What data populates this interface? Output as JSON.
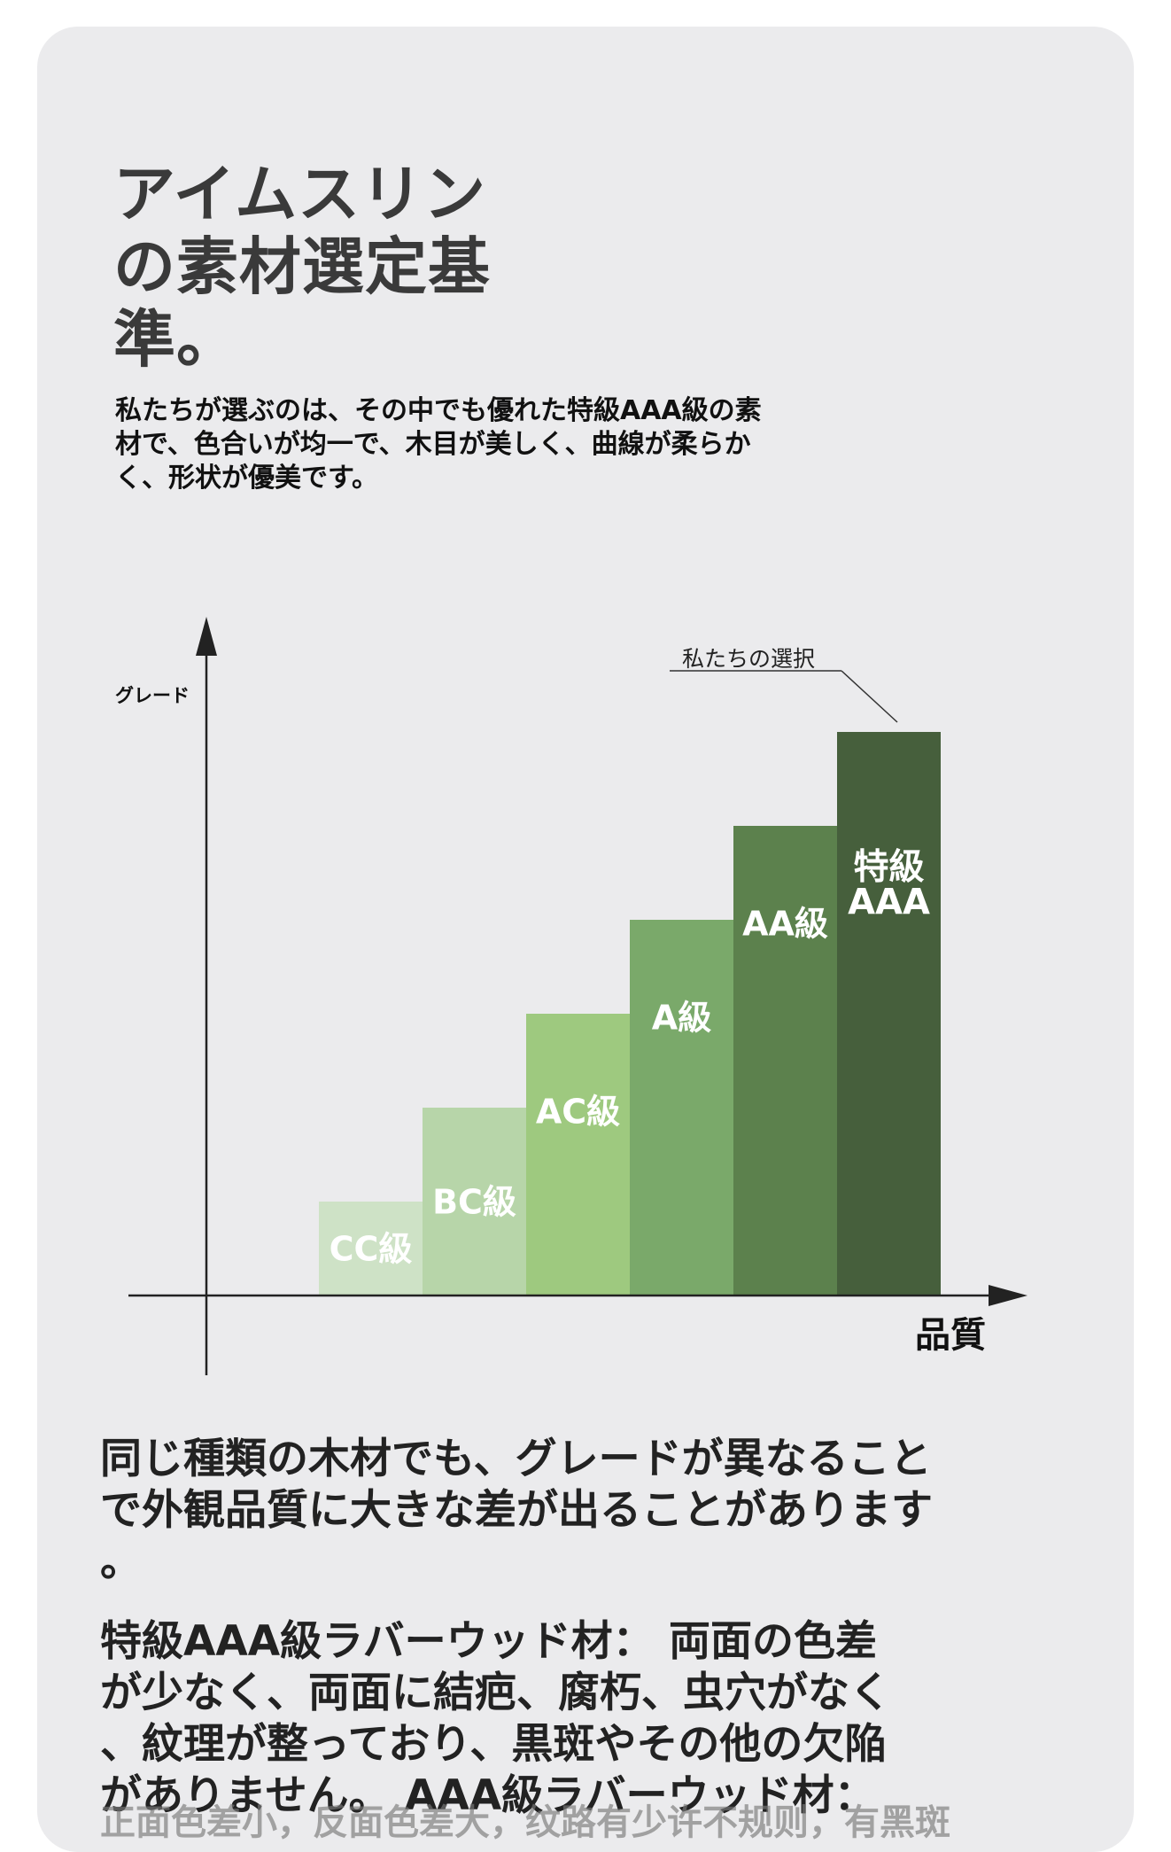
{
  "title_lines": [
    "アイムスリン",
    "の素材選定基",
    "準。"
  ],
  "intro_lines": [
    "私たちが選ぶのは、その中でも優れた特級AAA級の素",
    "材で、色合いが均一で、木目が美しく、曲線が柔らか",
    "く、形状が優美です。"
  ],
  "chart_data": {
    "type": "bar",
    "ylabel": "グレード",
    "xlabel": "品質",
    "annotation": "私たちの選択",
    "annotation_target": "特級AAA",
    "categories": [
      "CC級",
      "BC級",
      "AC級",
      "A級",
      "AA級",
      "特級AAA"
    ],
    "values": [
      1,
      2,
      3,
      4,
      5,
      6
    ],
    "category_lines": [
      [
        "CC級"
      ],
      [
        "BC級"
      ],
      [
        "AC級"
      ],
      [
        "A級"
      ],
      [
        "AA級"
      ],
      [
        "特級",
        "AAA"
      ]
    ],
    "colors": [
      "#cee2c6",
      "#b7d5a9",
      "#9ec97f",
      "#7aa96a",
      "#5c814d",
      "#465f3c"
    ],
    "axis_color": "#222222",
    "label_color": "#ffffff"
  },
  "para1_lines": [
    "同じ種類の木材でも、グレードが異なること",
    "で外観品質に大きな差が出ることがあります",
    "。"
  ],
  "para2_lines": [
    "特級AAA級ラバーウッド材： 両面の色差",
    "が少なく、両面に結疤、腐朽、虫穴がなく",
    "、紋理が整っており、黒斑やその他の欠陥",
    "がありません。 AAA級ラバーウッド材："
  ],
  "faded_line": "正面色差小，反面色差大，纹路有少许不规则，有黑斑"
}
